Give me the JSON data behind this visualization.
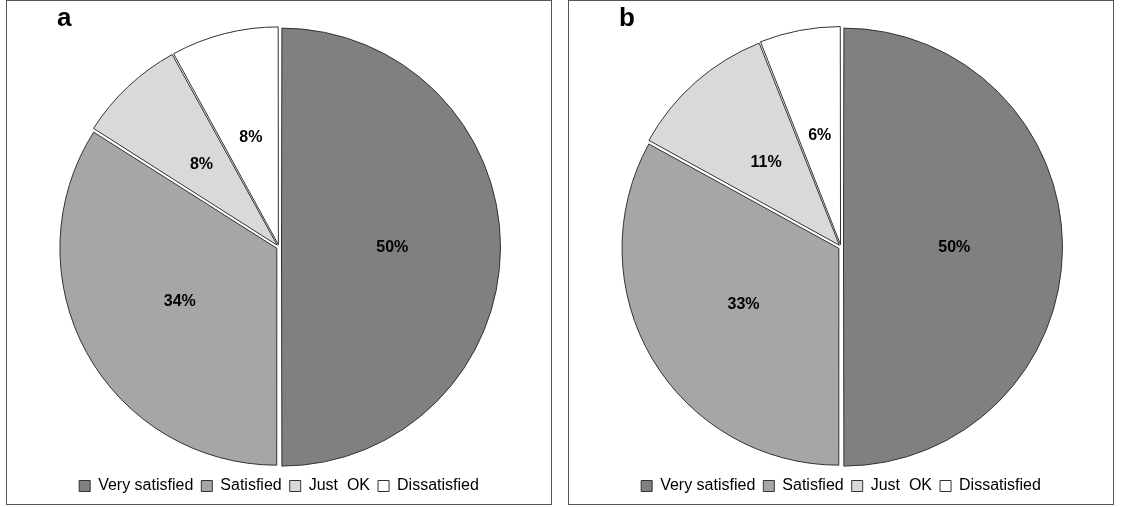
{
  "chart_data": [
    {
      "type": "pie",
      "title": "a",
      "categories": [
        "Very satisfied",
        "Satisfied",
        "Just  OK",
        "Dissatisfied"
      ],
      "values": [
        50,
        34,
        8,
        8
      ],
      "value_labels": [
        "50%",
        "34%",
        "8%",
        "8%"
      ],
      "colors": [
        "#808080",
        "#a6a6a6",
        "#d9d9d9",
        "#ffffff"
      ],
      "legend": "bottom"
    },
    {
      "type": "pie",
      "title": "b",
      "categories": [
        "Very satisfied",
        "Satisfied",
        "Just  OK",
        "Dissatisfied"
      ],
      "values": [
        50,
        33,
        11,
        6
      ],
      "value_labels": [
        "50%",
        "33%",
        "11%",
        "6%"
      ],
      "colors": [
        "#808080",
        "#a6a6a6",
        "#d9d9d9",
        "#ffffff"
      ],
      "legend": "bottom"
    }
  ]
}
